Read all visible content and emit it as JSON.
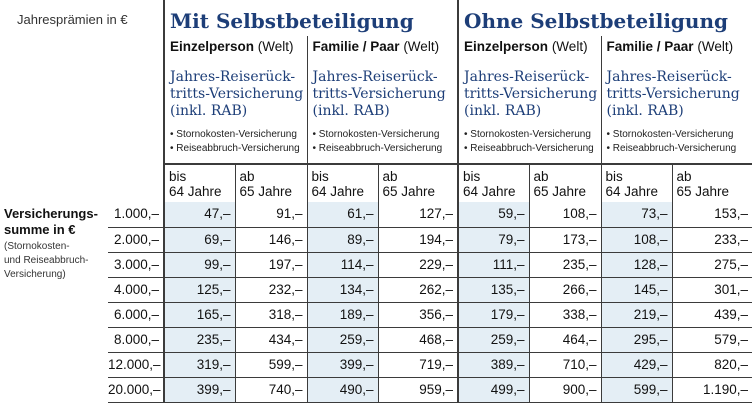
{
  "header_label": "Jahresprämien in €",
  "groups": [
    {
      "title": "Mit Selbstbeteiligung",
      "categories": [
        {
          "name": "Einzelperson",
          "region": "(Welt)"
        },
        {
          "name": "Familie / Paar",
          "region": "(Welt)"
        }
      ]
    },
    {
      "title": "Ohne Selbstbeteiligung",
      "categories": [
        {
          "name": "Einzelperson",
          "region": "(Welt)"
        },
        {
          "name": "Familie / Paar",
          "region": "(Welt)"
        }
      ]
    }
  ],
  "product": {
    "title_line1": "Jahres-Reiserück-",
    "title_line2": "tritts-Versicherung",
    "title_line3": "(inkl. RAB)",
    "bullet1": "• Stornokosten-Versicherung",
    "bullet2": "• Reiseabbruch-Versicherung"
  },
  "age_columns": {
    "young_line1": "bis",
    "young_line2": "64 Jahre",
    "old_line1": "ab",
    "old_line2": "65 Jahre"
  },
  "row_label": {
    "title_line1": "Versicherungs-",
    "title_line2": "summe in €",
    "sub_line1": "(Stornokosten-",
    "sub_line2": "und Reiseabbruch-",
    "sub_line3": "Versicherung)"
  },
  "rows": [
    {
      "sum": "1.000,–",
      "values": [
        "47,–",
        "91,–",
        "61,–",
        "127,–",
        "59,–",
        "108,–",
        "73,–",
        "153,–"
      ]
    },
    {
      "sum": "2.000,–",
      "values": [
        "69,–",
        "146,–",
        "89,–",
        "194,–",
        "79,–",
        "173,–",
        "108,–",
        "233,–"
      ]
    },
    {
      "sum": "3.000,–",
      "values": [
        "99,–",
        "197,–",
        "114,–",
        "229,–",
        "111,–",
        "235,–",
        "128,–",
        "275,–"
      ]
    },
    {
      "sum": "4.000,–",
      "values": [
        "125,–",
        "232,–",
        "134,–",
        "262,–",
        "135,–",
        "266,–",
        "145,–",
        "301,–"
      ]
    },
    {
      "sum": "6.000,–",
      "values": [
        "165,–",
        "318,–",
        "189,–",
        "356,–",
        "179,–",
        "338,–",
        "219,–",
        "439,–"
      ]
    },
    {
      "sum": "8.000,–",
      "values": [
        "235,–",
        "434,–",
        "259,–",
        "468,–",
        "259,–",
        "464,–",
        "295,–",
        "579,–"
      ]
    },
    {
      "sum": "12.000,–",
      "values": [
        "319,–",
        "599,–",
        "399,–",
        "719,–",
        "389,–",
        "710,–",
        "429,–",
        "820,–"
      ]
    },
    {
      "sum": "20.000,–",
      "values": [
        "399,–",
        "740,–",
        "490,–",
        "959,–",
        "499,–",
        "900,–",
        "599,–",
        "1.190,–"
      ]
    }
  ]
}
